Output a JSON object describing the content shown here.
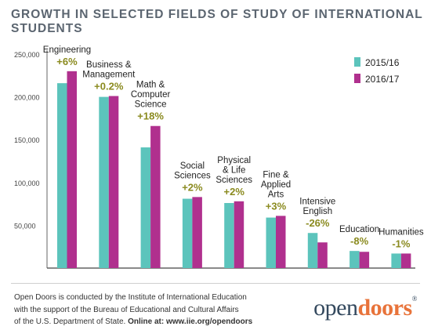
{
  "title": "GROWTH IN SELECTED FIELDS OF STUDY OF INTERNATIONAL STUDENTS",
  "colors": {
    "series_2015": "#5cc4bc",
    "series_2016": "#b0308e",
    "pct_label": "#8a8a1e",
    "axis": "#444444"
  },
  "chart_data": {
    "type": "bar",
    "categories": [
      "Engineering",
      "Business & Management",
      "Math & Computer Science",
      "Social Sciences",
      "Physical & Life Sciences",
      "Fine & Applied Arts",
      "Intensive English",
      "Education",
      "Humanities"
    ],
    "category_label_lines": [
      [
        "Engineering"
      ],
      [
        "Business &",
        "Management"
      ],
      [
        "Math &",
        "Computer",
        "Science"
      ],
      [
        "Social",
        "Sciences"
      ],
      [
        "Physical",
        "& Life",
        "Sciences"
      ],
      [
        "Fine &",
        "Applied",
        "Arts"
      ],
      [
        "Intensive",
        "English"
      ],
      [
        "Education"
      ],
      [
        "Humanities"
      ]
    ],
    "changes": [
      "+6%",
      "+0.2%",
      "+18%",
      "+2%",
      "+2%",
      "+3%",
      "-26%",
      "-8%",
      "-1%"
    ],
    "series": [
      {
        "name": "2015/16",
        "values": [
          216000,
          200000,
          141000,
          81000,
          76000,
          59000,
          41000,
          20000,
          17000
        ]
      },
      {
        "name": "2016/17",
        "values": [
          230000,
          201000,
          166000,
          83000,
          78000,
          61000,
          30000,
          19000,
          17000
        ]
      }
    ],
    "yticks": [
      50000,
      100000,
      150000,
      200000,
      250000
    ],
    "ytick_labels": [
      "50,000",
      "100,000",
      "150,000",
      "200,000",
      "250,000"
    ],
    "ylim": [
      0,
      250000
    ],
    "legend_position": "right",
    "grid": false
  },
  "footer": {
    "line1": "Open Doors is conducted by the Institute of International Education",
    "line2": "with the support of the Bureau of Educational and Cultural Affairs",
    "line3_prefix": "of the U.S. Department of State.",
    "line3_bold": "Online at: www.iie.org/opendoors"
  },
  "logo": {
    "part1": "open",
    "part2": "doors",
    "mark": "®"
  }
}
